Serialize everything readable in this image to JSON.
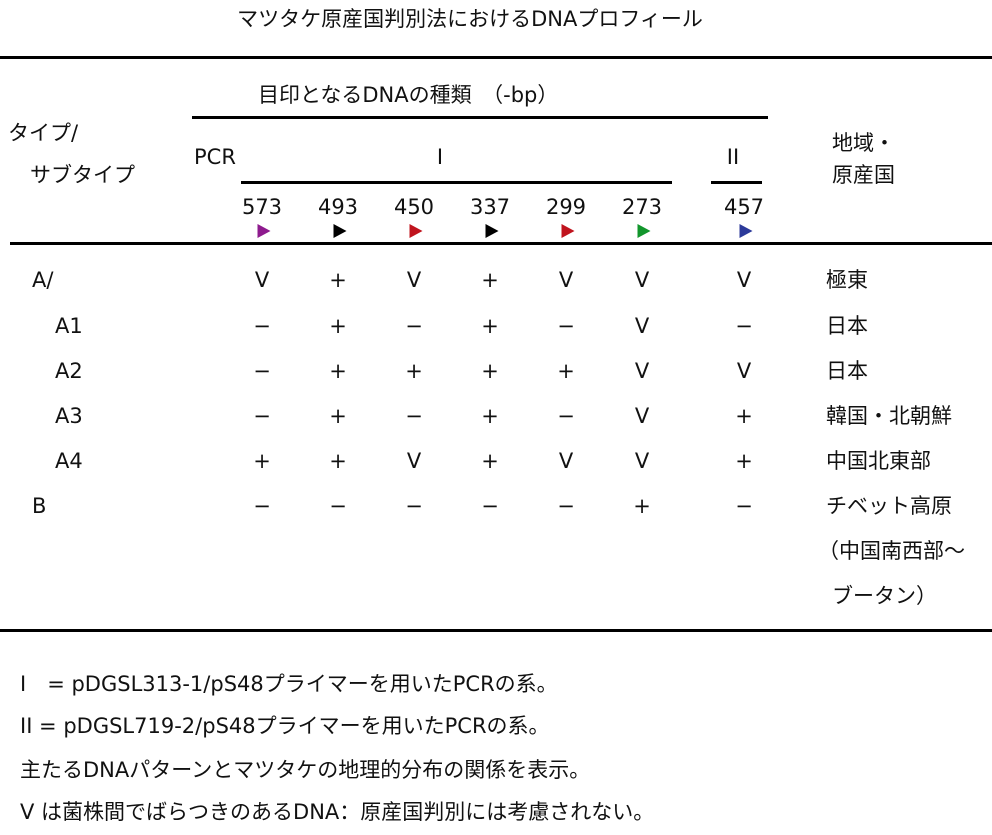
{
  "title": "マツタケ原産国判別法におけるDNAプロフィール",
  "header": {
    "group_label": "目印となるDNAの種類　（-bp）",
    "type_label_1": "タイプ/",
    "type_label_2": "サブタイプ",
    "pcr_label": "PCR",
    "pcr_I": "I",
    "pcr_II": "II",
    "region_label_1": "地域・",
    "region_label_2": "原産国",
    "markers": [
      {
        "bp": "573",
        "color": "#8e1b8e"
      },
      {
        "bp": "493",
        "color": "#000000"
      },
      {
        "bp": "450",
        "color": "#c0141e"
      },
      {
        "bp": "337",
        "color": "#000000"
      },
      {
        "bp": "299",
        "color": "#c0141e"
      },
      {
        "bp": "273",
        "color": "#12962c"
      },
      {
        "bp": "457",
        "color": "#2c3a9a"
      }
    ]
  },
  "rows": [
    {
      "type": "A/",
      "indent": false,
      "values": [
        "V",
        "+",
        "V",
        "+",
        "V",
        "V",
        "V"
      ],
      "region": "極東"
    },
    {
      "type": "A1",
      "indent": true,
      "values": [
        "−",
        "+",
        "−",
        "+",
        "−",
        "V",
        "−"
      ],
      "region": "日本"
    },
    {
      "type": "A2",
      "indent": true,
      "values": [
        "−",
        "+",
        "+",
        "+",
        "+",
        "V",
        "V"
      ],
      "region": "日本"
    },
    {
      "type": "A3",
      "indent": true,
      "values": [
        "−",
        "+",
        "−",
        "+",
        "−",
        "V",
        "+"
      ],
      "region": "韓国・北朝鮮"
    },
    {
      "type": "A4",
      "indent": true,
      "values": [
        "+",
        "+",
        "V",
        "+",
        "V",
        "V",
        "+"
      ],
      "region": "中国北東部"
    },
    {
      "type": "B",
      "indent": false,
      "values": [
        "−",
        "−",
        "−",
        "−",
        "−",
        "+",
        "−"
      ],
      "region": "チベット高原"
    }
  ],
  "region_continuation": [
    "（中国南西部〜",
    "ブータン）"
  ],
  "notes": [
    "I　= pDGSL313-1/pS48プライマーを用いたPCRの系。",
    "II = pDGSL719-2/pS48プライマーを用いたPCRの系。",
    "主たるDNAパターンとマツタケの地理的分布の関係を表示。",
    "V は菌株間でばらつきのあるDNA：原産国判別には考慮されない。"
  ]
}
